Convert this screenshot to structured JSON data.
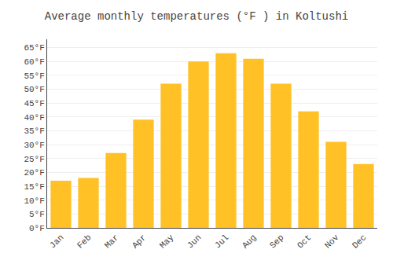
{
  "chart_data": {
    "type": "bar",
    "title": "Average monthly temperatures (°F ) in Koltushi",
    "categories": [
      "Jan",
      "Feb",
      "Mar",
      "Apr",
      "May",
      "Jun",
      "Jul",
      "Aug",
      "Sep",
      "Oct",
      "Nov",
      "Dec"
    ],
    "values": [
      17,
      18,
      27,
      39,
      52,
      60,
      63,
      61,
      52,
      42,
      31,
      23
    ],
    "color": "#FFC125",
    "ylim": [
      0,
      68
    ],
    "yticks": [
      {
        "value": 0,
        "label": "0°F"
      },
      {
        "value": 5,
        "label": "5°F"
      },
      {
        "value": 10,
        "label": "10°F"
      },
      {
        "value": 15,
        "label": "15°F"
      },
      {
        "value": 20,
        "label": "20°F"
      },
      {
        "value": 25,
        "label": "25°F"
      },
      {
        "value": 30,
        "label": "30°F"
      },
      {
        "value": 35,
        "label": "35°F"
      },
      {
        "value": 40,
        "label": "40°F"
      },
      {
        "value": 45,
        "label": "45°F"
      },
      {
        "value": 50,
        "label": "50°F"
      },
      {
        "value": 55,
        "label": "55°F"
      },
      {
        "value": 60,
        "label": "60°F"
      },
      {
        "value": 65,
        "label": "65°F"
      }
    ],
    "grid": true
  }
}
